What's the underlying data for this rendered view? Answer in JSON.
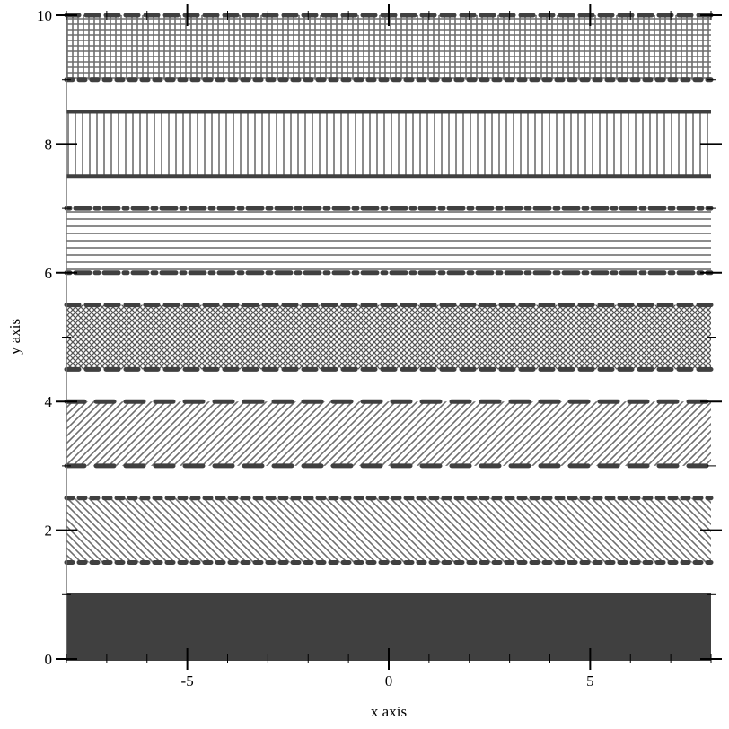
{
  "chart_data": {
    "type": "area",
    "xlabel": "x axis",
    "ylabel": "y axis",
    "xlim": [
      -8,
      8
    ],
    "ylim": [
      0,
      10
    ],
    "x_ticks": [
      -5,
      0,
      5
    ],
    "y_ticks": [
      0,
      2,
      4,
      6,
      8,
      10
    ],
    "grid": false,
    "colors": {
      "line": "#404040",
      "fill": "#404040",
      "hatch": "#6e6e6e"
    },
    "series": [
      {
        "y_low": 0,
        "y_high": 1,
        "fill_pattern": "solid",
        "line_style": "solid"
      },
      {
        "y_low": 1.5,
        "y_high": 2.5,
        "fill_pattern": "bdiagonal",
        "line_style": "dot"
      },
      {
        "y_low": 3,
        "y_high": 4,
        "fill_pattern": "fdiagonal",
        "line_style": "long-dash"
      },
      {
        "y_low": 4.5,
        "y_high": 5.5,
        "fill_pattern": "crossdiag",
        "line_style": "short-dash"
      },
      {
        "y_low": 6,
        "y_high": 7,
        "fill_pattern": "horizontal",
        "line_style": "dot-dash"
      },
      {
        "y_low": 7.5,
        "y_high": 8.5,
        "fill_pattern": "vertical",
        "line_style": "solid"
      },
      {
        "y_low": 9,
        "y_high": 10,
        "fill_pattern": "cross",
        "line_style": "dot",
        "line_style_high": "short-dash"
      }
    ]
  }
}
